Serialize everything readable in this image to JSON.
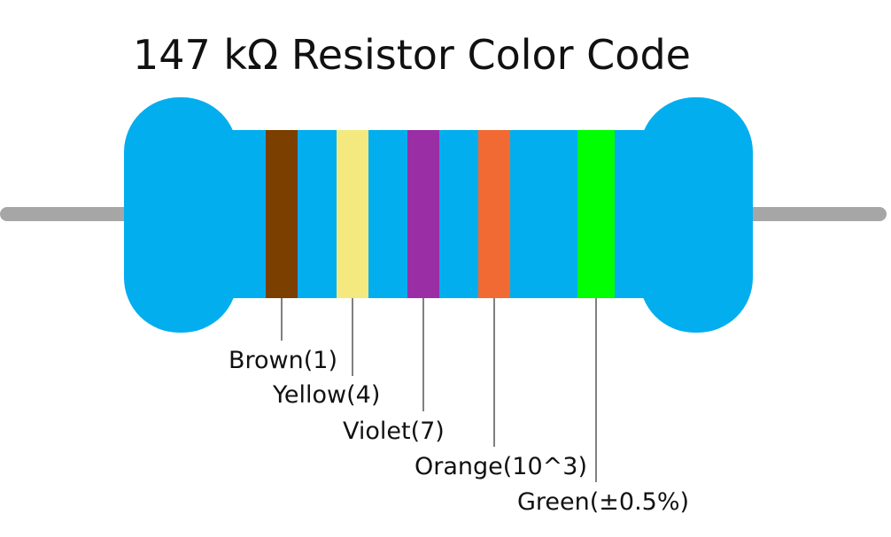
{
  "title": "147 kΩ Resistor Color Code",
  "colors": {
    "body": "#03AEEF",
    "lead": "#A6A6A6",
    "leader_line": "#000000",
    "text": "#111111"
  },
  "bands": [
    {
      "color_name": "Brown",
      "hex": "#7B3F00",
      "label": "Brown(1)"
    },
    {
      "color_name": "Yellow",
      "hex": "#F3E97F",
      "label": "Yellow(4)"
    },
    {
      "color_name": "Violet",
      "hex": "#9A2EA4",
      "label": "Violet(7)"
    },
    {
      "color_name": "Orange",
      "hex": "#F26A33",
      "label": "Orange(10^3)"
    },
    {
      "color_name": "Green",
      "hex": "#00FF00",
      "label": "Green(±0.5%)"
    }
  ]
}
